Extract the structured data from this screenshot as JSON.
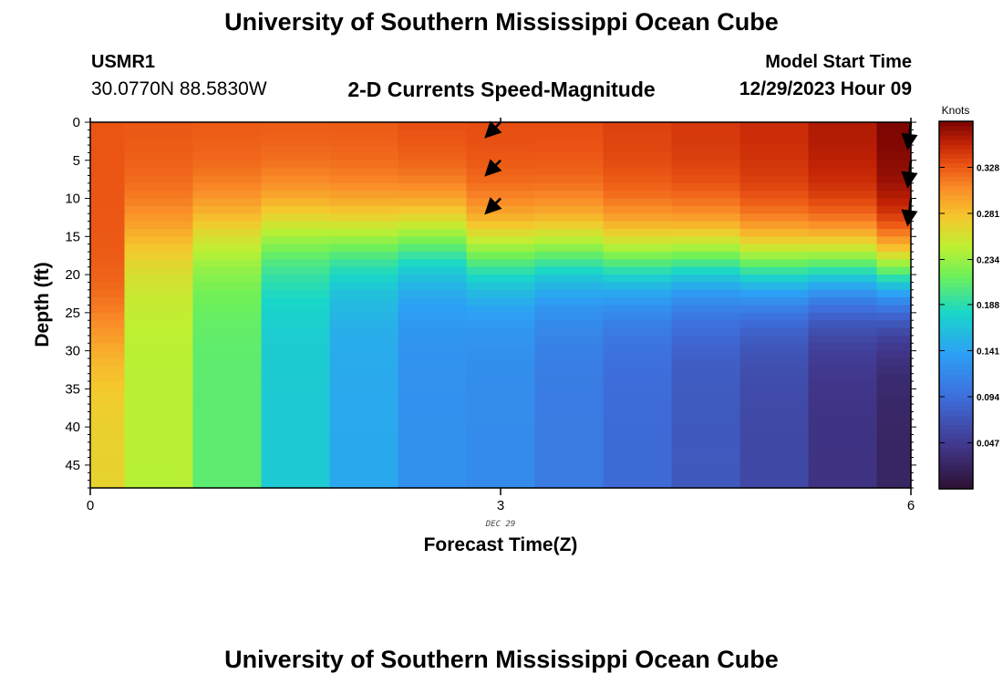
{
  "page": {
    "title_top": "University of Southern Mississippi Ocean Cube",
    "title_bottom": "University of Southern Mississippi Ocean Cube",
    "station_id": "USMR1",
    "station_coords": "30.0770N  88.5830W",
    "subtitle": "2-D Currents Speed-Magnitude",
    "model_start_label": "Model Start Time",
    "model_start_value": "12/29/2023 Hour 09"
  },
  "chart_data": {
    "type": "heatmap",
    "title": "2-D Currents Speed-Magnitude",
    "xlabel": "Forecast Time(Z)",
    "ylabel": "Depth (ft)",
    "x_range": [
      0,
      6
    ],
    "x_ticks": [
      0,
      3,
      6
    ],
    "x_date_label": "DEC 29",
    "y_range": [
      0,
      48
    ],
    "y_ticks": [
      0,
      5,
      10,
      15,
      20,
      25,
      30,
      35,
      40,
      45
    ],
    "colorbar": {
      "label": "Knots",
      "min": 0.0,
      "max": 0.375,
      "ticks": [
        0.047,
        0.094,
        0.141,
        0.188,
        0.234,
        0.281,
        0.328
      ]
    },
    "columns": [
      {
        "x": [
          0.0,
          0.25
        ],
        "surface": 0.33,
        "bottom": 0.27,
        "thermocline": 28
      },
      {
        "x": [
          0.25,
          0.75
        ],
        "surface": 0.33,
        "bottom": 0.245,
        "thermocline": 15
      },
      {
        "x": [
          0.75,
          1.25
        ],
        "surface": 0.33,
        "bottom": 0.21,
        "thermocline": 14
      },
      {
        "x": [
          1.25,
          1.75
        ],
        "surface": 0.33,
        "bottom": 0.17,
        "thermocline": 14
      },
      {
        "x": [
          1.75,
          2.25
        ],
        "surface": 0.33,
        "bottom": 0.145,
        "thermocline": 15
      },
      {
        "x": [
          2.25,
          2.75
        ],
        "surface": 0.335,
        "bottom": 0.125,
        "thermocline": 15
      },
      {
        "x": [
          2.75,
          3.25
        ],
        "surface": 0.335,
        "bottom": 0.12,
        "thermocline": 17
      },
      {
        "x": [
          3.25,
          3.75
        ],
        "surface": 0.335,
        "bottom": 0.105,
        "thermocline": 17
      },
      {
        "x": [
          3.75,
          4.25
        ],
        "surface": 0.34,
        "bottom": 0.09,
        "thermocline": 18
      },
      {
        "x": [
          4.25,
          4.75
        ],
        "surface": 0.345,
        "bottom": 0.075,
        "thermocline": 18
      },
      {
        "x": [
          4.75,
          5.25
        ],
        "surface": 0.35,
        "bottom": 0.06,
        "thermocline": 19
      },
      {
        "x": [
          5.25,
          5.75
        ],
        "surface": 0.36,
        "bottom": 0.04,
        "thermocline": 19
      },
      {
        "x": [
          5.75,
          6.0
        ],
        "surface": 0.375,
        "bottom": 0.025,
        "thermocline": 20
      }
    ],
    "vectors": [
      {
        "time": 3,
        "depth": 0,
        "direction": "southwest"
      },
      {
        "time": 3,
        "depth": 5,
        "direction": "southwest"
      },
      {
        "time": 3,
        "depth": 10,
        "direction": "southwest"
      },
      {
        "time": 6,
        "depth": 0,
        "direction": "south"
      },
      {
        "time": 6,
        "depth": 5,
        "direction": "south"
      },
      {
        "time": 6,
        "depth": 10,
        "direction": "south"
      }
    ]
  }
}
